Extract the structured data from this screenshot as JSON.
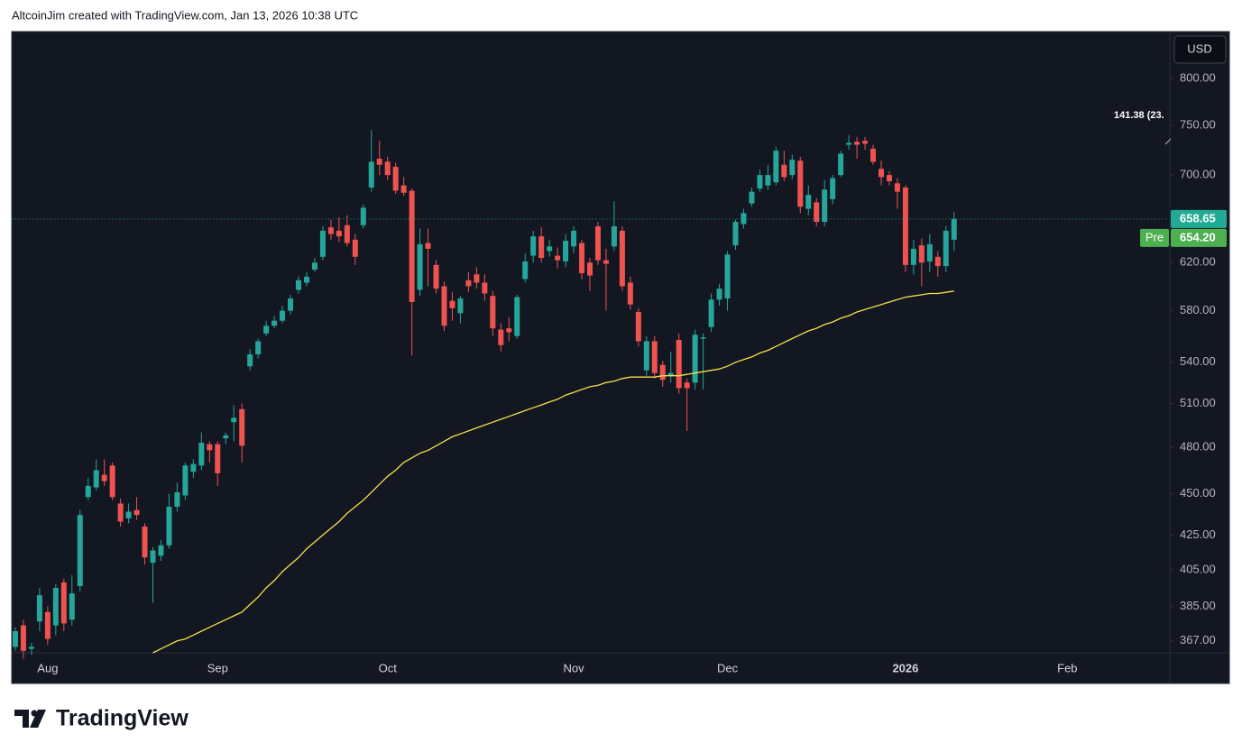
{
  "header": {
    "text": "AltcoinJim created with TradingView.com, Jan 13, 2026 10:38 UTC"
  },
  "footer": {
    "brand": "TradingView"
  },
  "chart_data": {
    "type": "candlestick",
    "currency": "USD",
    "log_scale": true,
    "grid": false,
    "up_color": "#26a69a",
    "down_color": "#ef5350",
    "categories": [
      null,
      null,
      null,
      null,
      "Aug",
      null,
      null,
      null,
      null,
      null,
      null,
      null,
      null,
      null,
      null,
      null,
      null,
      null,
      null,
      null,
      null,
      null,
      null,
      null,
      null,
      "Sep",
      null,
      null,
      null,
      null,
      null,
      null,
      null,
      null,
      null,
      null,
      null,
      null,
      null,
      null,
      null,
      null,
      null,
      null,
      null,
      null,
      "Oct",
      null,
      null,
      null,
      null,
      null,
      null,
      null,
      null,
      null,
      null,
      null,
      null,
      null,
      null,
      null,
      null,
      null,
      null,
      null,
      null,
      null,
      null,
      "Nov",
      null,
      null,
      null,
      null,
      null,
      null,
      null,
      null,
      null,
      null,
      null,
      null,
      null,
      null,
      null,
      null,
      null,
      null,
      "Dec",
      null,
      null,
      null,
      null,
      null,
      null,
      null,
      null,
      null,
      null,
      null,
      null,
      null,
      null,
      null,
      null,
      null,
      null,
      null,
      null,
      null,
      "2026",
      null,
      null,
      null,
      null,
      null,
      null,
      null,
      null,
      null,
      null,
      null,
      null,
      null,
      null,
      null,
      null,
      null,
      null,
      null,
      "Feb",
      null,
      null,
      null,
      null,
      null,
      null,
      null,
      null,
      null,
      null,
      null,
      null
    ],
    "open": [
      364,
      375,
      363,
      377,
      382,
      375,
      398,
      378,
      396,
      448,
      454,
      462,
      468,
      444,
      435,
      440,
      430,
      409,
      413,
      419,
      442,
      449,
      464,
      468,
      482,
      482,
      486,
      497,
      506,
      537,
      546,
      562,
      568,
      572,
      580,
      597,
      603,
      614,
      625,
      651,
      648,
      653,
      640,
      653,
      688,
      716,
      713,
      708,
      690,
      685,
      597,
      637,
      618,
      600,
      588,
      578,
      605,
      610,
      603,
      592,
      565,
      566,
      560,
      606,
      626,
      643,
      630,
      626,
      621,
      634,
      637,
      620,
      652,
      622,
      634,
      648,
      603,
      579,
      534,
      556,
      538,
      530,
      557,
      525,
      525,
      558,
      567,
      589,
      590,
      635,
      654,
      673,
      687,
      690,
      693,
      710,
      700,
      714,
      668,
      674,
      656,
      677,
      700,
      730,
      733,
      734,
      726,
      706,
      700,
      692,
      688,
      618,
      635,
      621,
      625,
      617,
      640,
      null,
      null,
      null,
      null,
      null,
      null,
      null,
      null,
      null,
      null,
      null,
      null,
      null,
      null,
      null,
      null,
      null,
      null,
      null,
      null,
      null,
      null,
      null,
      null,
      null,
      null
    ],
    "high": [
      374,
      378,
      366,
      395,
      385,
      397,
      400,
      402,
      440,
      460,
      472,
      472,
      470,
      447,
      444,
      448,
      432,
      418,
      422,
      450,
      457,
      470,
      472,
      490,
      484,
      484,
      490,
      509,
      510,
      550,
      558,
      572,
      576,
      584,
      593,
      608,
      612,
      624,
      652,
      658,
      660,
      662,
      645,
      672,
      745,
      734,
      718,
      712,
      698,
      687,
      650,
      650,
      622,
      604,
      595,
      592,
      612,
      616,
      610,
      596,
      570,
      575,
      593,
      628,
      648,
      651,
      640,
      633,
      645,
      652,
      640,
      624,
      656,
      632,
      675,
      652,
      608,
      582,
      560,
      560,
      541,
      548,
      562,
      528,
      565,
      562,
      594,
      602,
      630,
      658,
      668,
      688,
      705,
      710,
      728,
      724,
      720,
      718,
      690,
      678,
      695,
      700,
      724,
      740,
      738,
      738,
      730,
      714,
      704,
      697,
      690,
      640,
      641,
      645,
      630,
      652,
      665,
      null,
      null,
      null,
      null,
      null,
      null,
      null,
      null,
      null,
      null,
      null,
      null,
      null,
      null,
      null,
      null,
      null,
      null,
      null,
      null,
      null,
      null,
      null,
      null,
      null,
      null
    ],
    "low": [
      362,
      358,
      360,
      372,
      365,
      370,
      372,
      375,
      393,
      446,
      452,
      455,
      446,
      430,
      432,
      434,
      408,
      387,
      410,
      417,
      439,
      446,
      460,
      465,
      470,
      455,
      482,
      484,
      470,
      534,
      543,
      560,
      566,
      570,
      577,
      594,
      600,
      612,
      622,
      640,
      638,
      634,
      618,
      650,
      684,
      700,
      695,
      682,
      680,
      545,
      592,
      600,
      594,
      564,
      572,
      570,
      595,
      598,
      588,
      560,
      548,
      556,
      558,
      603,
      620,
      620,
      625,
      615,
      616,
      628,
      606,
      596,
      618,
      580,
      630,
      596,
      581,
      552,
      530,
      528,
      522,
      525,
      517,
      491,
      520,
      520,
      563,
      584,
      580,
      631,
      650,
      670,
      684,
      686,
      690,
      694,
      696,
      664,
      662,
      652,
      652,
      672,
      698,
      725,
      716,
      725,
      710,
      690,
      690,
      668,
      612,
      610,
      600,
      612,
      608,
      612,
      630,
      null,
      null,
      null,
      null,
      null,
      null,
      null,
      null,
      null,
      null,
      null,
      null,
      null,
      null,
      null,
      null,
      null,
      null,
      null,
      null,
      null,
      null,
      null,
      null,
      null,
      null
    ],
    "close": [
      372,
      362,
      364,
      391,
      368,
      395,
      376,
      392,
      437,
      455,
      465,
      458,
      448,
      433,
      439,
      437,
      412,
      416,
      419,
      442,
      451,
      468,
      469,
      483,
      478,
      463,
      488,
      500,
      481,
      546,
      556,
      568,
      572,
      580,
      590,
      605,
      608,
      620,
      648,
      645,
      643,
      637,
      625,
      669,
      713,
      710,
      700,
      685,
      683,
      587,
      636,
      632,
      598,
      568,
      582,
      590,
      600,
      603,
      594,
      566,
      553,
      563,
      591,
      621,
      643,
      624,
      634,
      622,
      639,
      648,
      611,
      609,
      622,
      619,
      652,
      600,
      585,
      556,
      556,
      532,
      527,
      532,
      521,
      521,
      561,
      559,
      589,
      598,
      627,
      656,
      664,
      684,
      700,
      700,
      724,
      698,
      715,
      670,
      681,
      656,
      686,
      697,
      721,
      732,
      730,
      731,
      713,
      698,
      694,
      684,
      618,
      632,
      620,
      636,
      617,
      648,
      658.65,
      null,
      null,
      null,
      null,
      null,
      null,
      null,
      null,
      null,
      null,
      null,
      null,
      null,
      null,
      null,
      null,
      null,
      null,
      null,
      null,
      null,
      null,
      null,
      null,
      null,
      null
    ],
    "ma": {
      "color": "#f5e04a",
      "values": [
        null,
        null,
        null,
        null,
        null,
        null,
        null,
        null,
        null,
        null,
        null,
        null,
        null,
        null,
        null,
        null,
        null,
        361,
        363,
        365,
        367,
        368,
        370,
        372,
        374,
        376,
        378,
        380,
        382,
        386,
        390,
        395,
        399,
        404,
        408,
        412,
        417,
        421,
        425,
        429,
        433,
        438,
        442,
        446,
        451,
        456,
        461,
        465,
        470,
        473,
        476,
        478,
        481,
        484,
        487,
        489,
        491,
        493,
        495,
        497,
        499,
        501,
        503,
        505,
        507,
        509,
        511,
        513,
        516,
        518,
        520,
        522,
        523,
        525,
        526,
        528,
        529,
        529,
        529,
        529,
        530,
        530,
        530,
        531,
        532,
        533,
        534,
        535,
        537,
        540,
        542,
        544,
        547,
        549,
        552,
        555,
        558,
        561,
        564,
        566,
        569,
        571,
        574,
        576,
        579,
        581,
        583,
        585,
        587,
        589,
        591,
        592,
        593,
        594,
        594,
        595,
        596,
        null,
        null,
        null,
        null,
        null,
        null,
        null,
        null,
        null,
        null,
        null,
        null,
        null,
        null,
        null,
        null,
        null,
        null,
        null,
        null,
        null,
        null,
        null,
        null,
        null,
        null
      ]
    },
    "last_price": 658.65,
    "last_price_color": "#22ab94",
    "premarket": {
      "label": "Pre",
      "price": {
        "value": 654.2,
        "label": "654.20"
      },
      "color": "#4caf50"
    },
    "annotation": "141.38 (23.",
    "ylim": [
      361,
      854
    ],
    "yticks": [
      {
        "value": 367,
        "label": "367.00"
      },
      {
        "value": 385,
        "label": "385.00"
      },
      {
        "value": 405,
        "label": "405.00"
      },
      {
        "value": 425,
        "label": "425.00"
      },
      {
        "value": 450,
        "label": "450.00"
      },
      {
        "value": 480,
        "label": "480.00"
      },
      {
        "value": 510,
        "label": "510.00"
      },
      {
        "value": 540,
        "label": "540.00"
      },
      {
        "value": 580,
        "label": "580.00"
      },
      {
        "value": 620,
        "label": "620.00"
      },
      {
        "value": 700,
        "label": "700.00"
      },
      {
        "value": 750,
        "label": "750.00"
      },
      {
        "value": 800,
        "label": "800.00"
      }
    ]
  }
}
